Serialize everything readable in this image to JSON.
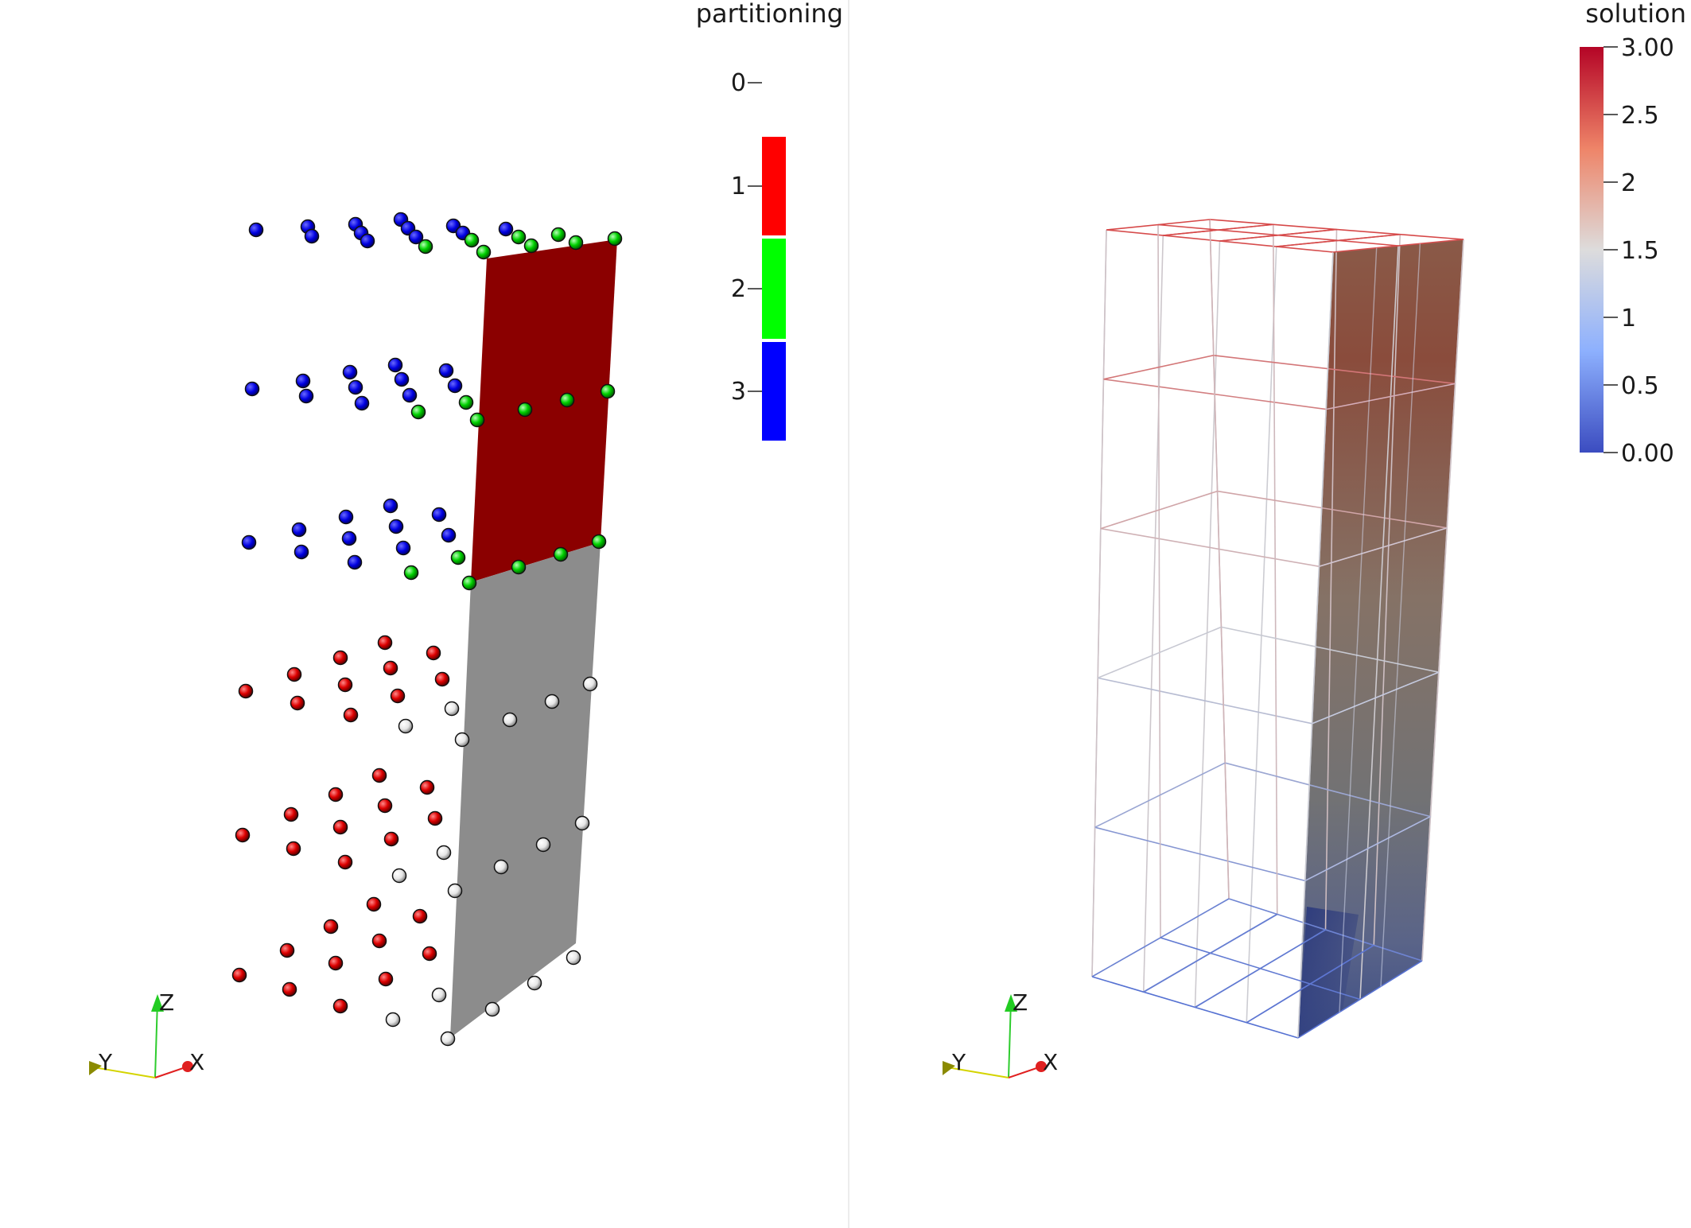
{
  "views": [
    {
      "legend": {
        "title": "partitioning",
        "labels": [
          "0",
          "1",
          "2",
          "3"
        ],
        "colors": [
          "#ffffff",
          "#ff0000",
          "#00ff00",
          "#0000ff"
        ]
      },
      "axes": {
        "z": "Z",
        "y": "Y",
        "x": "X"
      }
    },
    {
      "legend": {
        "title": "solution",
        "tick_labels": [
          "3.00",
          "2.5",
          "2",
          "1.5",
          "1",
          "0.5",
          "0.00"
        ],
        "range": [
          0,
          3
        ],
        "colormap": "cool-to-warm"
      },
      "axes": {
        "z": "Z",
        "y": "Y",
        "x": "X"
      }
    }
  ],
  "colors": {
    "partition_face_top": "#8b0000",
    "partition_face_bottom": "#8c8c8c",
    "axis_z": "#2ecc2e",
    "axis_y": "#d4d400",
    "axis_x": "#e02020",
    "colormap_high": "#b40426",
    "colormap_mid": "#dddddd",
    "colormap_low": "#3b4cc0"
  }
}
